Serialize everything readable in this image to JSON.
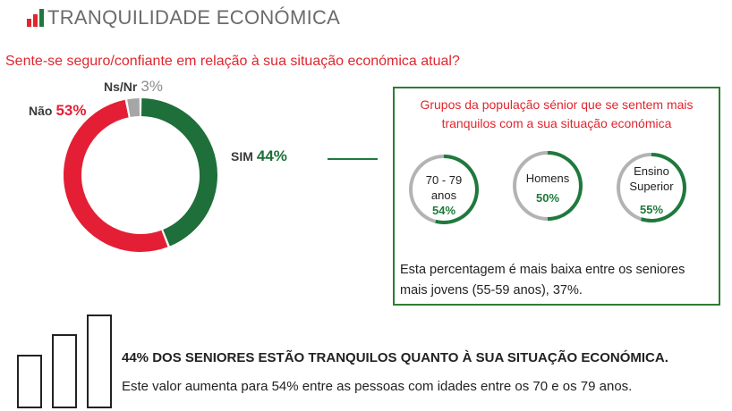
{
  "header": {
    "title": "TRANQUILIDADE ECONÓMICA"
  },
  "question": "Sente-se seguro/confiante em relação à sua situação económica atual?",
  "chart_data": [
    {
      "type": "pie",
      "title": "",
      "donut": true,
      "slices": [
        {
          "label": "SIM",
          "pct_text": "44%",
          "value": 44,
          "color": "#1e6f3a"
        },
        {
          "label": "Não",
          "pct_text": "53%",
          "value": 53,
          "color": "#e41f35"
        },
        {
          "label": "Ns/Nr",
          "pct_text": "3%",
          "value": 3,
          "color": "#a6a6a6"
        }
      ]
    },
    {
      "type": "pie",
      "title": "Grupos da população sénior que se sentem mais tranquilos com a sua situação económica",
      "donut": true,
      "series": [
        {
          "category": "70 - 79 anos",
          "label_lines": [
            "70 - 79",
            "anos"
          ],
          "value": 54,
          "value_text": "54%"
        },
        {
          "category": "Homens",
          "label_lines": [
            "Homens"
          ],
          "value": 50,
          "value_text": "50%"
        },
        {
          "category": "Ensino Superior",
          "label_lines": [
            "Ensino",
            "Superior"
          ],
          "value": 55,
          "value_text": "55%"
        }
      ]
    }
  ],
  "box": {
    "title_line1": "Grupos da população sénior que se sentem mais",
    "title_line2": "tranquilos com a sua situação económica",
    "note_line1": "Esta percentagem é mais baixa entre os seniores",
    "note_line2": "mais jovens (55-59 anos), 37%."
  },
  "bottom": {
    "headline": "44% DOS SENIORES ESTÃO TRANQUILOS QUANTO À SUA SITUAÇÃO ECONÓMICA.",
    "text": "Este valor aumenta para 54% entre as pessoas com idades entre os 70 e os 79 anos."
  },
  "colors": {
    "accent_red": "#e0262e",
    "green": "#1e7a3c",
    "grey": "#a6a6a6",
    "logo_bars": [
      "#e0262e",
      "#e0262e",
      "#1e7a3c"
    ]
  },
  "icons": {
    "logo": "bar-chart-logo-icon",
    "bottom": "ascending-bars-icon"
  }
}
